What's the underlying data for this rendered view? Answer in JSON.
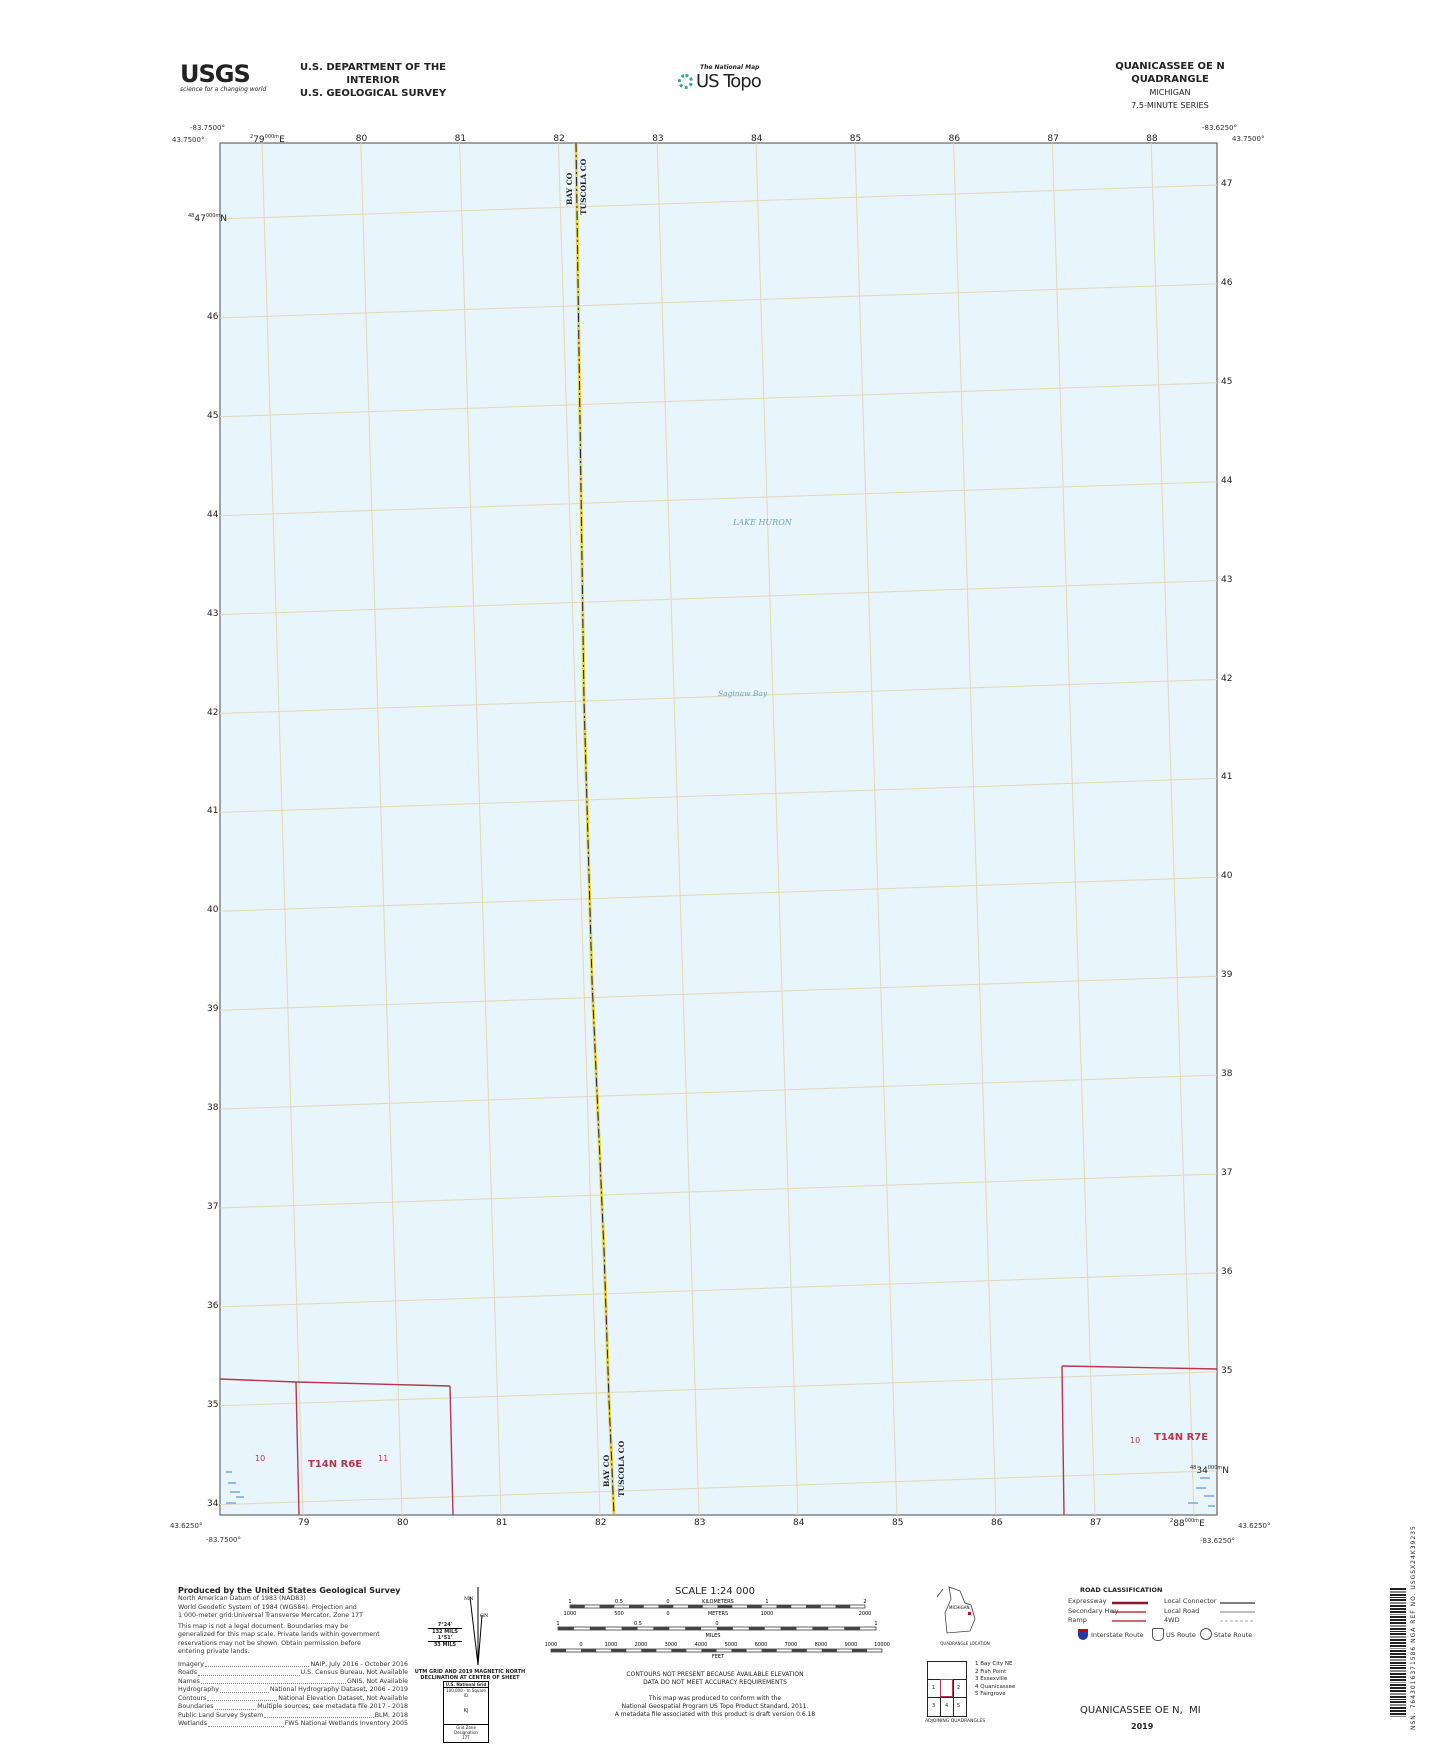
{
  "header": {
    "logo_text": "USGS",
    "logo_tagline": "science for a changing world",
    "dept": "U.S. DEPARTMENT OF THE INTERIOR",
    "survey": "U.S. GEOLOGICAL SURVEY",
    "national_map": "The National Map",
    "us_topo": "US Topo",
    "quad_title": "QUANICASSEE OE N QUADRANGLE",
    "state": "MICHIGAN",
    "series": "7.5-MINUTE SERIES"
  },
  "map": {
    "corners": {
      "nw_lon": "-83.7500°",
      "nw_lat": "43.7500°",
      "ne_lon": "-83.6250°",
      "ne_lat": "43.7500°",
      "sw_lon": "-83.7500°",
      "sw_lat": "43.6250°",
      "se_lon": "-83.6250°",
      "se_lat": "43.6250°"
    },
    "easting_labels": [
      "79",
      "80",
      "81",
      "82",
      "83",
      "84",
      "85",
      "86",
      "87",
      "88"
    ],
    "easting_first_prefix": "2",
    "easting_first_suffix": "000m E",
    "northing_labels": [
      "47",
      "46",
      "45",
      "44",
      "43",
      "42",
      "41",
      "40",
      "39",
      "38",
      "37",
      "36",
      "35",
      "34"
    ],
    "northing_prefix": "48",
    "northing_suffix": "000m N",
    "water_labels": {
      "lake": "LAKE HURON",
      "bay": "Saginaw Bay"
    },
    "county_labels": {
      "west": "BAY CO",
      "east": "TUSCOLA CO"
    },
    "plss": {
      "left_township": "T14N R6E",
      "left_sections": [
        "10",
        "11"
      ],
      "right_township": "T14N R7E",
      "right_sections": [
        "10"
      ]
    },
    "colors": {
      "water": "#e8f5fc",
      "grid": "#e3d8b4",
      "plss": "#b8354d",
      "county": "#e4d24a",
      "frame": "#555555"
    }
  },
  "footer": {
    "produced_by": "Produced by the United States Geological Survey",
    "datum_lines": [
      "North American Datum of 1983 (NAD83)",
      "World Geodetic System of 1984 (WGS84). Projection and",
      "1 000-meter grid:Universal Transverse Mercator, Zone 17T"
    ],
    "legal_lines": [
      "This map is not a legal document. Boundaries may be",
      "generalized for this map scale. Private lands within government",
      "reservations may not be shown. Obtain permission before",
      "entering private lands."
    ],
    "sources": [
      [
        "Imagery",
        "NAIP, July 2016 - October 2016"
      ],
      [
        "Roads",
        "U.S. Census Bureau, Not Available"
      ],
      [
        "Names",
        "GNIS, Not Available"
      ],
      [
        "Hydrography",
        "National Hydrography Dataset, 2006 - 2019"
      ],
      [
        "Contours",
        "National Elevation Dataset, Not Available"
      ],
      [
        "Boundaries",
        "Multiple sources; see metadata file 2017 - 2018"
      ],
      [
        "Public Land Survey System",
        "BLM, 2018"
      ],
      [
        "Wetlands",
        "FWS National Wetlands Inventory 2005"
      ]
    ],
    "declination": {
      "mn": "MN",
      "gn": "GN",
      "angle1": "7°24'",
      "mils1": "132 MILS",
      "angle2": "1°51'",
      "mils2": "33 MILS",
      "caption1": "UTM GRID AND 2019 MAGNETIC NORTH",
      "caption2": "DECLINATION AT CENTER OF SHEET"
    },
    "grid_box": {
      "title": "U.S. National Grid",
      "sub": "100,000 - m Square ID",
      "id": "KJ",
      "zone_label": "Grid Zone Designation",
      "zone": "17T"
    },
    "scale": {
      "title": "SCALE 1:24 000",
      "km_labels": [
        "1",
        "0.5",
        "0",
        "1",
        "2"
      ],
      "km_unit": "KILOMETERS",
      "m_labels": [
        "1000",
        "500",
        "0",
        "1000",
        "2000"
      ],
      "m_unit": "METERS",
      "mi_labels": [
        "1",
        "0.5",
        "0",
        "1"
      ],
      "mi_unit": "MILES",
      "ft_labels": [
        "1000",
        "0",
        "1000",
        "2000",
        "3000",
        "4000",
        "5000",
        "6000",
        "7000",
        "8000",
        "9000",
        "10000"
      ],
      "ft_unit": "FEET"
    },
    "contour_note": [
      "CONTOURS NOT PRESENT BECAUSE AVAILABLE ELEVATION",
      "DATA DO NOT MEET ACCURACY REQUIREMENTS"
    ],
    "standard_note": [
      "This map was produced to conform with the",
      "National Geospatial Program US Topo Product Standard, 2011.",
      "A metadata file associated with this product is draft version 0.6.18"
    ],
    "location": {
      "state": "MICHIGAN",
      "caption": "QUADRANGLE LOCATION"
    },
    "adjoining": {
      "caption": "ADJOINING QUADRANGLES",
      "cells": [
        "1",
        "2",
        "3",
        "4",
        "5"
      ],
      "names": [
        "1 Bay City NE",
        "2 Fish Point",
        "3 Essexville",
        "4 Quanicassee",
        "5 Fairgrove"
      ]
    },
    "roads": {
      "title": "ROAD CLASSIFICATION",
      "left": [
        "Expressway",
        "Secondary Hwy",
        "Ramp"
      ],
      "right": [
        "Local Connector",
        "Local Road",
        "4WD"
      ],
      "shields": [
        "Interstate Route",
        "US Route",
        "State Route"
      ]
    },
    "bottom_title": "QUANICASSEE OE N,  MI",
    "year": "2019",
    "barcode_text": "NSN. 7643016371586  NGA REF NO. USGSX24K39235"
  }
}
